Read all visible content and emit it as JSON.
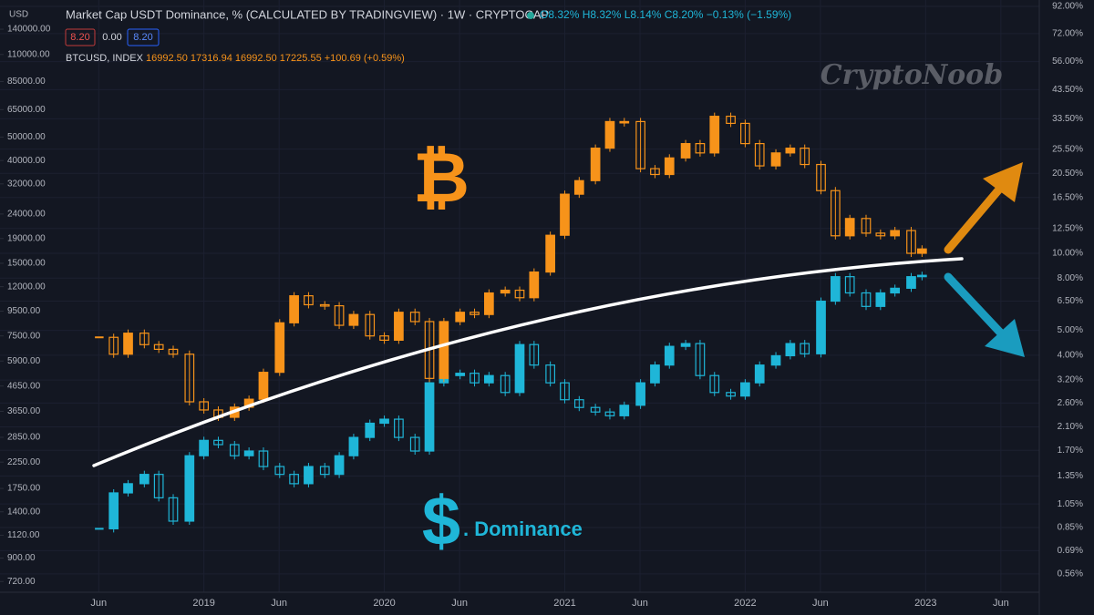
{
  "chart_data": {
    "type": "candlestick",
    "currency": "USD",
    "price_boxes": [
      "8.20",
      "0.00",
      "8.20"
    ],
    "watermark": "CryptoNoob",
    "annotations": [
      "₿",
      "$",
      ". Dominance"
    ],
    "log_scale": true,
    "grid": true,
    "x": [
      2018.42,
      2018.5,
      2018.58,
      2018.67,
      2018.75,
      2018.83,
      2018.92,
      2019.0,
      2019.08,
      2019.17,
      2019.25,
      2019.33,
      2019.42,
      2019.5,
      2019.58,
      2019.67,
      2019.75,
      2019.83,
      2019.92,
      2020.0,
      2020.08,
      2020.17,
      2020.25,
      2020.33,
      2020.42,
      2020.5,
      2020.58,
      2020.67,
      2020.75,
      2020.83,
      2020.92,
      2021.0,
      2021.08,
      2021.17,
      2021.25,
      2021.33,
      2021.42,
      2021.5,
      2021.58,
      2021.67,
      2021.75,
      2021.83,
      2021.92,
      2022.0,
      2022.08,
      2022.17,
      2022.25,
      2022.33,
      2022.42,
      2022.5,
      2022.58,
      2022.67,
      2022.75,
      2022.83,
      2022.92,
      2022.98
    ],
    "xlim": [
      2017.87,
      2023.63
    ],
    "xticks": [
      {
        "value": 2018.417,
        "label": "Jun"
      },
      {
        "value": 2019,
        "label": "2019"
      },
      {
        "value": 2019.417,
        "label": "Jun"
      },
      {
        "value": 2020,
        "label": "2020"
      },
      {
        "value": 2020.417,
        "label": "Jun"
      },
      {
        "value": 2021,
        "label": "2021"
      },
      {
        "value": 2021.417,
        "label": "Jun"
      },
      {
        "value": 2022,
        "label": "2022"
      },
      {
        "value": 2022.417,
        "label": "Jun"
      },
      {
        "value": 2023,
        "label": "2023"
      },
      {
        "value": 2023.417,
        "label": "Jun"
      }
    ],
    "ylim": [
      650,
      185000
    ],
    "yticks": [
      {
        "value": 140000,
        "label": "140000.00"
      },
      {
        "value": 110000,
        "label": "110000.00"
      },
      {
        "value": 85000,
        "label": "85000.00"
      },
      {
        "value": 65000,
        "label": "65000.00"
      },
      {
        "value": 50000,
        "label": "50000.00"
      },
      {
        "value": 40000,
        "label": "40000.00"
      },
      {
        "value": 32000,
        "label": "32000.00"
      },
      {
        "value": 24000,
        "label": "24000.00"
      },
      {
        "value": 19000,
        "label": "19000.00"
      },
      {
        "value": 15000,
        "label": "15000.00"
      },
      {
        "value": 12000,
        "label": "12000.00"
      },
      {
        "value": 9500,
        "label": "9500.00"
      },
      {
        "value": 7500,
        "label": "7500.00"
      },
      {
        "value": 5900,
        "label": "5900.00"
      },
      {
        "value": 4650,
        "label": "4650.00"
      },
      {
        "value": 3650,
        "label": "3650.00"
      },
      {
        "value": 2850,
        "label": "2850.00"
      },
      {
        "value": 2250,
        "label": "2250.00"
      },
      {
        "value": 1750,
        "label": "1750.00"
      },
      {
        "value": 1400,
        "label": "1400.00"
      },
      {
        "value": 1120,
        "label": "1120.00"
      },
      {
        "value": 900,
        "label": "900.00"
      },
      {
        "value": 720,
        "label": "720.00"
      }
    ],
    "y2lim": [
      0.475,
      97.4
    ],
    "y2ticks": [
      {
        "value": 92,
        "label": "92.00%"
      },
      {
        "value": 72,
        "label": "72.00%"
      },
      {
        "value": 56,
        "label": "56.00%"
      },
      {
        "value": 43.5,
        "label": "43.50%"
      },
      {
        "value": 33.5,
        "label": "33.50%"
      },
      {
        "value": 25.5,
        "label": "25.50%"
      },
      {
        "value": 20.5,
        "label": "20.50%"
      },
      {
        "value": 16.5,
        "label": "16.50%"
      },
      {
        "value": 12.5,
        "label": "12.50%"
      },
      {
        "value": 10,
        "label": "10.00%"
      },
      {
        "value": 8,
        "label": "8.00%"
      },
      {
        "value": 6.5,
        "label": "6.50%"
      },
      {
        "value": 5,
        "label": "5.00%"
      },
      {
        "value": 4,
        "label": "4.00%"
      },
      {
        "value": 3.2,
        "label": "3.20%"
      },
      {
        "value": 2.6,
        "label": "2.60%"
      },
      {
        "value": 2.1,
        "label": "2.10%"
      },
      {
        "value": 1.7,
        "label": "1.70%"
      },
      {
        "value": 1.35,
        "label": "1.35%"
      },
      {
        "value": 1.05,
        "label": "1.05%"
      },
      {
        "value": 0.85,
        "label": "0.85%"
      },
      {
        "value": 0.69,
        "label": "0.69%"
      },
      {
        "value": 0.56,
        "label": "0.56%"
      }
    ],
    "series": [
      {
        "name": "Market Cap USDT Dominance, % (CALCULATED BY TRADINGVIEW) · 1W · CRYPTOCAP",
        "ohlc": "O8.32% H8.32% L8.14% C8.20% −0.13% (−1.59%)",
        "color": "#1fb6d8",
        "axis": "y2",
        "values": [
          0.84,
          1.16,
          1.26,
          1.37,
          1.11,
          0.9,
          1.62,
          1.86,
          1.79,
          1.62,
          1.69,
          1.47,
          1.37,
          1.26,
          1.47,
          1.37,
          1.62,
          1.91,
          2.17,
          2.25,
          1.91,
          1.69,
          3.12,
          3.33,
          3.4,
          3.12,
          3.33,
          2.86,
          4.4,
          3.66,
          3.12,
          2.68,
          2.5,
          2.4,
          2.32,
          2.55,
          3.12,
          3.66,
          4.33,
          4.44,
          3.33,
          2.86,
          2.77,
          3.12,
          3.66,
          3.98,
          4.44,
          4.05,
          6.5,
          8.1,
          7.0,
          6.2,
          7.0,
          7.3,
          8.1,
          8.2
        ]
      },
      {
        "name": "BTCUSD, INDEX",
        "ohlc": "16992.50 17316.94 16992.50 17225.55 +100.69 (+0.59%)",
        "color": "#f7931a",
        "values": [
          7400,
          6300,
          7700,
          6900,
          6600,
          6300,
          4000,
          3700,
          3450,
          3800,
          4100,
          5300,
          8500,
          11000,
          10100,
          10000,
          8300,
          9200,
          7500,
          7200,
          9400,
          8600,
          5000,
          8600,
          9400,
          9200,
          11300,
          11600,
          10800,
          13800,
          19600,
          29000,
          33000,
          45000,
          58000,
          58000,
          37000,
          35000,
          41000,
          47000,
          43000,
          61000,
          57000,
          47000,
          38000,
          43000,
          45000,
          38500,
          30000,
          19500,
          23000,
          20000,
          19500,
          20500,
          16500,
          17200
        ]
      }
    ]
  }
}
